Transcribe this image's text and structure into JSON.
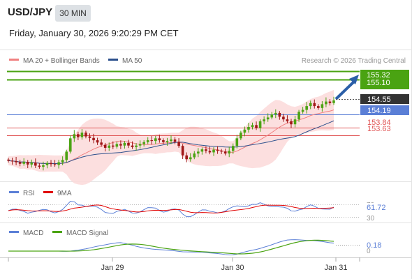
{
  "header": {
    "symbol": "USD/JPY",
    "timeframe": "30 MIN",
    "datetime": "Friday, January 30, 2026 9:20:29 PM CET"
  },
  "main_legend": {
    "ma20": "MA 20 + Bollinger Bands",
    "ma50": "MA 50",
    "copyright": "Research © 2026 Trading Central",
    "ma20_color": "#f08080",
    "ma50_color": "#2b4f8c"
  },
  "price_labels": [
    {
      "value": "155.32",
      "style": "target"
    },
    {
      "value": "155.10",
      "style": "target"
    },
    {
      "value": "154.55",
      "style": "last"
    },
    {
      "value": "154.19",
      "style": "pivot"
    },
    {
      "value": "153.84",
      "style": "support"
    },
    {
      "value": "153.63",
      "style": "support"
    }
  ],
  "rsi_panel": {
    "label": "RSI",
    "ma_label": "9MA",
    "value_label": "61.72",
    "level_70": "70",
    "level_30": "30",
    "rsi_color": "#5b7fd6",
    "ma_color": "#e00000"
  },
  "macd_panel": {
    "label": "MACD",
    "signal_label": "MACD Signal",
    "value_label": "0.18",
    "zero_label": "0",
    "macd_color": "#5b7fd6",
    "signal_color": "#4aa312"
  },
  "x_axis": {
    "ticks": [
      "Jan 29",
      "Jan 30",
      "Jan 31"
    ]
  },
  "colors": {
    "target": "#4aa312",
    "pivot": "#5b7fd6",
    "support": "#e05555",
    "last": "#333333",
    "bull_candle": "#4aa312",
    "bear_candle": "#a01818",
    "band_fill": "#fbd9d9",
    "arrow": "#2b5fa8"
  },
  "chart_data": {
    "type": "candlestick",
    "ylim": [
      152.6,
      155.45
    ],
    "levels": [
      155.32,
      155.1,
      154.19,
      153.84,
      153.63
    ],
    "last_price": 154.55,
    "closes": [
      152.96,
      152.95,
      152.92,
      152.88,
      152.93,
      152.86,
      152.91,
      152.83,
      152.8,
      152.84,
      152.9,
      152.87,
      152.85,
      152.92,
      152.98,
      153.2,
      153.55,
      153.66,
      153.58,
      153.7,
      153.6,
      153.56,
      153.5,
      153.44,
      153.38,
      153.3,
      153.36,
      153.33,
      153.4,
      153.36,
      153.43,
      153.36,
      153.32,
      153.36,
      153.4,
      153.45,
      153.5,
      153.48,
      153.55,
      153.5,
      153.45,
      153.48,
      153.52,
      153.46,
      153.35,
      153.1,
      153.0,
      153.05,
      153.15,
      153.2,
      153.26,
      153.22,
      153.18,
      153.25,
      153.22,
      153.2,
      153.15,
      153.22,
      153.35,
      153.55,
      153.7,
      153.78,
      153.85,
      153.9,
      153.82,
      154.0,
      154.05,
      154.1,
      154.18,
      154.22,
      154.12,
      154.05,
      154.0,
      153.92,
      154.05,
      154.25,
      154.3,
      154.4,
      154.48,
      154.4,
      154.35,
      154.45,
      154.52,
      154.48,
      154.55
    ]
  }
}
